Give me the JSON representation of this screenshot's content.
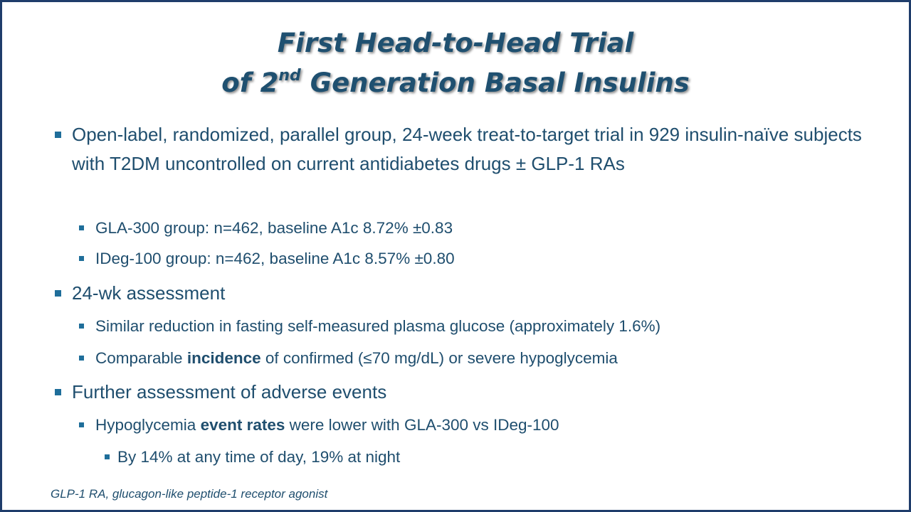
{
  "slide": {
    "title_line1": "First Head-to-Head Trial",
    "title_line2_pre": "of 2",
    "title_line2_sup": "nd",
    "title_line2_post": " Generation Basal Insulins",
    "bullets": {
      "b1": "Open-label, randomized, parallel group, 24-week treat-to-target trial in 929 insulin-naïve subjects with T2DM uncontrolled on current antidiabetes drugs ± GLP-1 RAs",
      "b1_1": "GLA-300 group: n=462, baseline A1c 8.72% ±0.83",
      "b1_2": "IDeg-100 group: n=462, baseline A1c 8.57% ±0.80",
      "b2": "24-wk assessment",
      "b2_1": "Similar reduction in fasting self-measured plasma glucose (approximately 1.6%)",
      "b2_2_pre": "Comparable ",
      "b2_2_bold": "incidence",
      "b2_2_post": " of confirmed (≤70 mg/dL) or severe hypoglycemia",
      "b3": "Further assessment of adverse events",
      "b3_1_pre": "Hypoglycemia ",
      "b3_1_bold": "event rates",
      "b3_1_post": " were lower with GLA-300 vs IDeg-100",
      "b3_1_1": "By 14% at any time of day, 19% at night"
    },
    "footnote": "GLP-1 RA, glucagon-like peptide-1 receptor agonist"
  },
  "colors": {
    "border": "#1f3d6b",
    "title": "#1f5070",
    "text": "#1f4e6e",
    "bullet": "#1f6e9a"
  }
}
